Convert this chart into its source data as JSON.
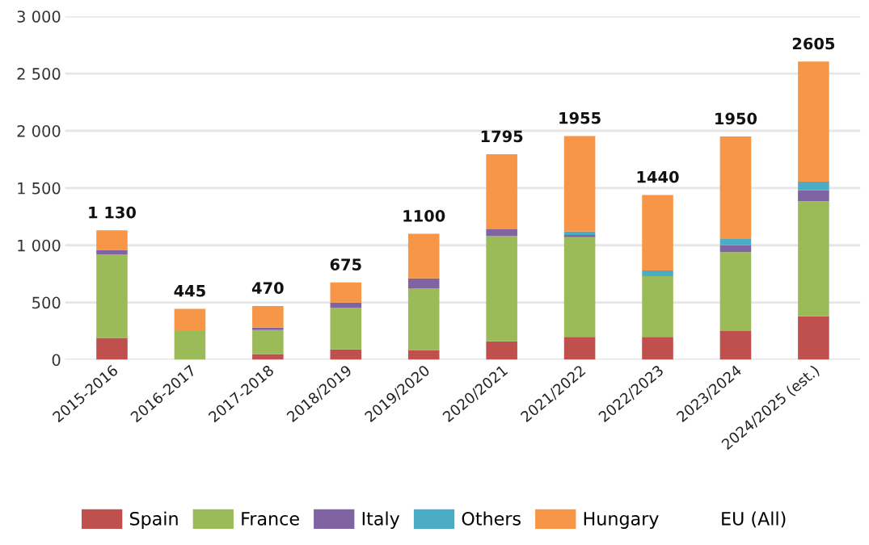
{
  "chart_data": {
    "type": "bar",
    "stacked": true,
    "categories": [
      "2015-2016",
      "2016-2017",
      "2017-2018",
      "2018/2019",
      "2019/2020",
      "2020/2021",
      "2021/2022",
      "2022/2023",
      "2023/2024",
      "2024/2025 (est.)"
    ],
    "series": [
      {
        "name": "Spain",
        "color": "#c0504d",
        "values": [
          190,
          0,
          50,
          90,
          85,
          160,
          200,
          200,
          250,
          380
        ]
      },
      {
        "name": "France",
        "color": "#9bbb59",
        "values": [
          730,
          250,
          210,
          365,
          535,
          920,
          870,
          530,
          690,
          1005
        ]
      },
      {
        "name": "Italy",
        "color": "#8064a2",
        "values": [
          40,
          0,
          20,
          45,
          90,
          60,
          20,
          0,
          60,
          95
        ]
      },
      {
        "name": "Others",
        "color": "#4bacc6",
        "values": [
          0,
          0,
          0,
          0,
          0,
          0,
          30,
          50,
          60,
          75
        ]
      },
      {
        "name": "Hungary",
        "color": "#f79646",
        "values": [
          170,
          195,
          190,
          175,
          390,
          655,
          835,
          660,
          890,
          1050
        ]
      }
    ],
    "totals": [
      "1 130",
      "445",
      "470",
      "675",
      "1100",
      "1795",
      "1955",
      "1440",
      "1950",
      "2605"
    ],
    "legend_title": "EU (All)",
    "ylim": [
      0,
      3000
    ],
    "yticks": [
      0,
      500,
      {
        "value": 1000,
        "label": "1 000"
      },
      {
        "value": 1500,
        "label": "1 500"
      },
      {
        "value": 2000,
        "label": "2 000"
      },
      {
        "value": 2500,
        "label": "2 500"
      },
      {
        "value": 3000,
        "label": "3 000"
      }
    ],
    "grid": "y",
    "legend": "bottom"
  }
}
